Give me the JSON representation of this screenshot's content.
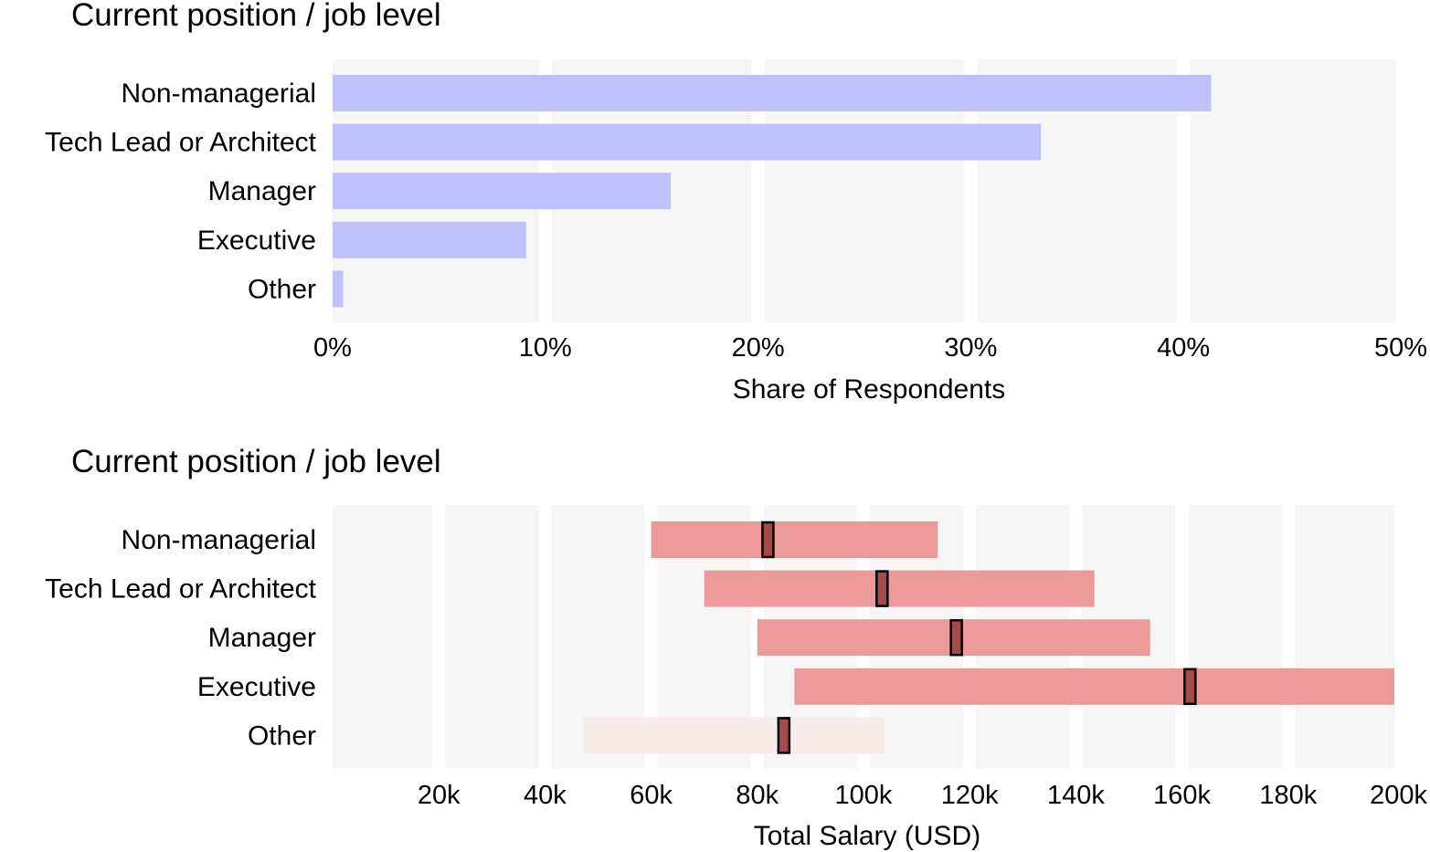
{
  "chart_data": [
    {
      "type": "bar",
      "orientation": "horizontal",
      "title": "Current position / job level",
      "xlabel": "Share of Respondents",
      "ylabel": "",
      "categories": [
        "Non-managerial",
        "Tech Lead or Architect",
        "Manager",
        "Executive",
        "Other"
      ],
      "values": [
        41.3,
        33.3,
        15.9,
        9.1,
        0.5
      ],
      "xlim": [
        0,
        50
      ],
      "ticks": [
        0,
        10,
        20,
        30,
        40,
        50
      ],
      "tick_labels": [
        "0%",
        "10%",
        "20%",
        "30%",
        "40%",
        "50%"
      ],
      "bar_color": "#c0c0fa",
      "panel_color": "#f6f6f6",
      "grid": true
    },
    {
      "type": "range",
      "orientation": "horizontal",
      "title": "Current position / job level",
      "xlabel": "Total Salary (USD)",
      "ylabel": "",
      "categories": [
        "Non-managerial",
        "Tech Lead or Architect",
        "Manager",
        "Executive",
        "Other"
      ],
      "ranges": [
        {
          "low": 60000,
          "high": 114000,
          "median": 82000,
          "faded": false
        },
        {
          "low": 70000,
          "high": 143500,
          "median": 103500,
          "faded": false
        },
        {
          "low": 80000,
          "high": 154000,
          "median": 117500,
          "faded": false
        },
        {
          "low": 87000,
          "high": 200000,
          "median": 161500,
          "faded": false
        },
        {
          "low": 47000,
          "high": 104000,
          "median": 85000,
          "faded": true
        }
      ],
      "xlim": [
        0,
        200000
      ],
      "ticks": [
        20000,
        40000,
        60000,
        80000,
        100000,
        120000,
        140000,
        160000,
        180000,
        200000
      ],
      "tick_labels": [
        "20k",
        "40k",
        "60k",
        "80k",
        "100k",
        "120k",
        "140k",
        "160k",
        "180k",
        "200k"
      ],
      "range_color": "#eb9999",
      "faded_range_color": "#f8eceb",
      "median_color": "#a24b4b",
      "panel_color": "#f6f6f6",
      "grid": true
    }
  ]
}
